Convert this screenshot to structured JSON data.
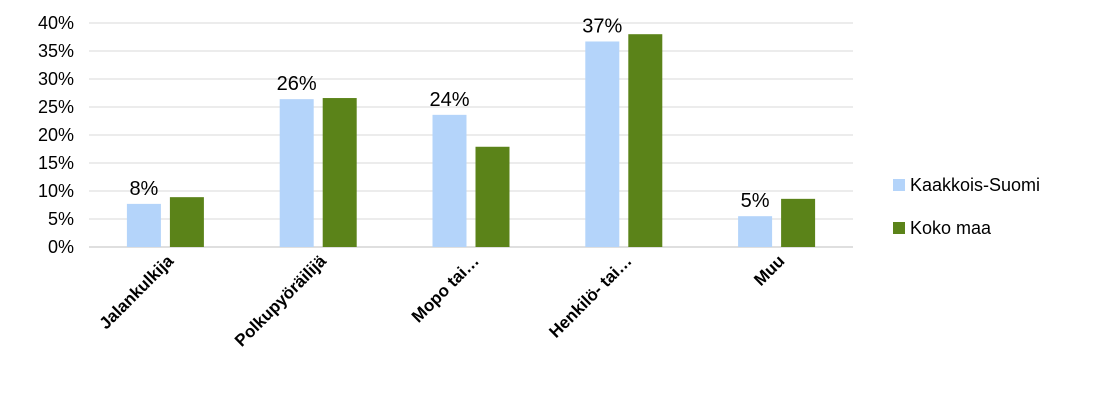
{
  "chart_data": {
    "type": "bar",
    "categories": [
      "Jalankulkija",
      "Polkupyöräilijä",
      "Mopo tai…",
      "Henkilö- tai…",
      "Muu"
    ],
    "series": [
      {
        "name": "Kaakkois-Suomi",
        "values": [
          0.077,
          0.264,
          0.236,
          0.367,
          0.055
        ],
        "color": "#B4D4FA"
      },
      {
        "name": "Koko maa",
        "values": [
          0.089,
          0.266,
          0.179,
          0.38,
          0.086
        ],
        "color": "#5B8319"
      }
    ],
    "data_labels": [
      "8%",
      "26%",
      "24%",
      "37%",
      "5%"
    ],
    "y_ticks": [
      "0%",
      "5%",
      "10%",
      "15%",
      "20%",
      "25%",
      "30%",
      "35%",
      "40%"
    ],
    "ylim": [
      0,
      0.4
    ],
    "grid": true,
    "legend_position": "right",
    "gridline_color": "#D9D9D9",
    "axis_color": "#BFBFBF"
  }
}
